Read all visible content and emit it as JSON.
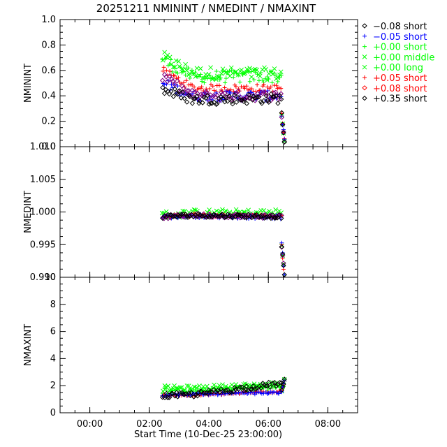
{
  "chart_data": {
    "type": "scatter",
    "title": "20251211  NMININT  /  NMEDINT  /  NMAXINT",
    "xlabel": "Start Time (10-Dec-25 23:00:00)",
    "xlim": [
      -1.0,
      9.0
    ],
    "xticks": [
      0,
      2,
      4,
      6,
      8
    ],
    "xtick_labels": [
      "00:00",
      "02:00",
      "04:00",
      "06:00",
      "08:00"
    ],
    "legend_position": "right",
    "legend": [
      {
        "label": "−0.08  short",
        "symbol": "diamond",
        "color": "#000000"
      },
      {
        "label": "−0.05  short",
        "symbol": "plus",
        "color": "#0000ff"
      },
      {
        "label": "+0.00  short",
        "symbol": "plus",
        "color": "#00ff00"
      },
      {
        "label": "+0.00  middle",
        "symbol": "cross",
        "color": "#00ff00"
      },
      {
        "label": "+0.00  long",
        "symbol": "cross",
        "color": "#00ff00"
      },
      {
        "label": "+0.05  short",
        "symbol": "plus",
        "color": "#ff0000"
      },
      {
        "label": "+0.08  short",
        "symbol": "diamond",
        "color": "#ff0000"
      },
      {
        "label": "+0.35  short",
        "symbol": "diamond",
        "color": "#000000"
      }
    ],
    "panels": [
      {
        "ylabel": "NMININT",
        "ylim": [
          0.0,
          1.0
        ],
        "yticks": [
          0.0,
          0.2,
          0.4,
          0.6,
          0.8,
          1.0
        ],
        "ytick_labels": [
          "0.0",
          "0.2",
          "0.4",
          "0.6",
          "0.8",
          "1.0"
        ],
        "x_range": [
          2.45,
          6.55
        ],
        "series_levels": [
          {
            "color": "#00ff00",
            "symbol": "cross",
            "start": 0.7,
            "mid": 0.58,
            "end": 0.57,
            "spread": 0.05
          },
          {
            "color": "#00ff00",
            "symbol": "plus",
            "start": 0.68,
            "mid": 0.55,
            "end": 0.55,
            "spread": 0.05
          },
          {
            "color": "#ff0000",
            "symbol": "plus",
            "start": 0.6,
            "mid": 0.46,
            "end": 0.46,
            "spread": 0.03
          },
          {
            "color": "#0000ff",
            "symbol": "plus",
            "start": 0.5,
            "mid": 0.4,
            "end": 0.4,
            "spread": 0.04
          },
          {
            "color": "#800080",
            "symbol": "diamond",
            "start": 0.55,
            "mid": 0.4,
            "end": 0.4,
            "spread": 0.04
          },
          {
            "color": "#000000",
            "symbol": "diamond",
            "start": 0.45,
            "mid": 0.37,
            "end": 0.38,
            "spread": 0.04
          }
        ],
        "end_drop": [
          0.25,
          0.05
        ]
      },
      {
        "ylabel": "NMEDINT",
        "ylim": [
          0.99,
          1.01
        ],
        "yticks": [
          0.99,
          0.995,
          1.0,
          1.005,
          1.01
        ],
        "ytick_labels": [
          "0.990",
          "0.995",
          "1.000",
          "1.005",
          "1.010"
        ],
        "x_range": [
          2.45,
          6.55
        ],
        "series_levels": [
          {
            "color": "#00ff00",
            "symbol": "cross",
            "start": 0.9995,
            "mid": 0.9998,
            "end": 0.9998,
            "spread": 0.0006
          },
          {
            "color": "#ff0000",
            "symbol": "plus",
            "start": 0.9993,
            "mid": 0.9995,
            "end": 0.9993,
            "spread": 0.0003
          },
          {
            "color": "#0000ff",
            "symbol": "plus",
            "start": 0.9993,
            "mid": 0.9994,
            "end": 0.9992,
            "spread": 0.0003
          },
          {
            "color": "#800080",
            "symbol": "diamond",
            "start": 0.9992,
            "mid": 0.9995,
            "end": 0.9993,
            "spread": 0.0003
          },
          {
            "color": "#000000",
            "symbol": "diamond",
            "start": 0.9993,
            "mid": 0.9995,
            "end": 0.9993,
            "spread": 0.0003
          }
        ],
        "end_drop": [
          0.995,
          0.99
        ]
      },
      {
        "ylabel": "NMAXINT",
        "ylim": [
          0,
          10
        ],
        "yticks": [
          0,
          2,
          4,
          6,
          8,
          10
        ],
        "ytick_labels": [
          "0",
          "2",
          "4",
          "6",
          "8",
          "10"
        ],
        "x_range": [
          2.45,
          6.55
        ],
        "series_levels": [
          {
            "color": "#00ff00",
            "symbol": "cross",
            "start": 1.8,
            "mid": 1.8,
            "end": 2.1,
            "spread": 0.2
          },
          {
            "color": "#00ff00",
            "symbol": "plus",
            "start": 1.6,
            "mid": 1.6,
            "end": 1.9,
            "spread": 0.2
          },
          {
            "color": "#ff0000",
            "symbol": "plus",
            "start": 1.3,
            "mid": 1.3,
            "end": 1.6,
            "spread": 0.08
          },
          {
            "color": "#0000ff",
            "symbol": "plus",
            "start": 1.3,
            "mid": 1.35,
            "end": 1.5,
            "spread": 0.08
          },
          {
            "color": "#000000",
            "symbol": "diamond",
            "start": 1.25,
            "mid": 1.35,
            "end": 2.2,
            "spread": 0.2
          }
        ],
        "end_drop": [
          1.6,
          2.4
        ]
      }
    ]
  }
}
